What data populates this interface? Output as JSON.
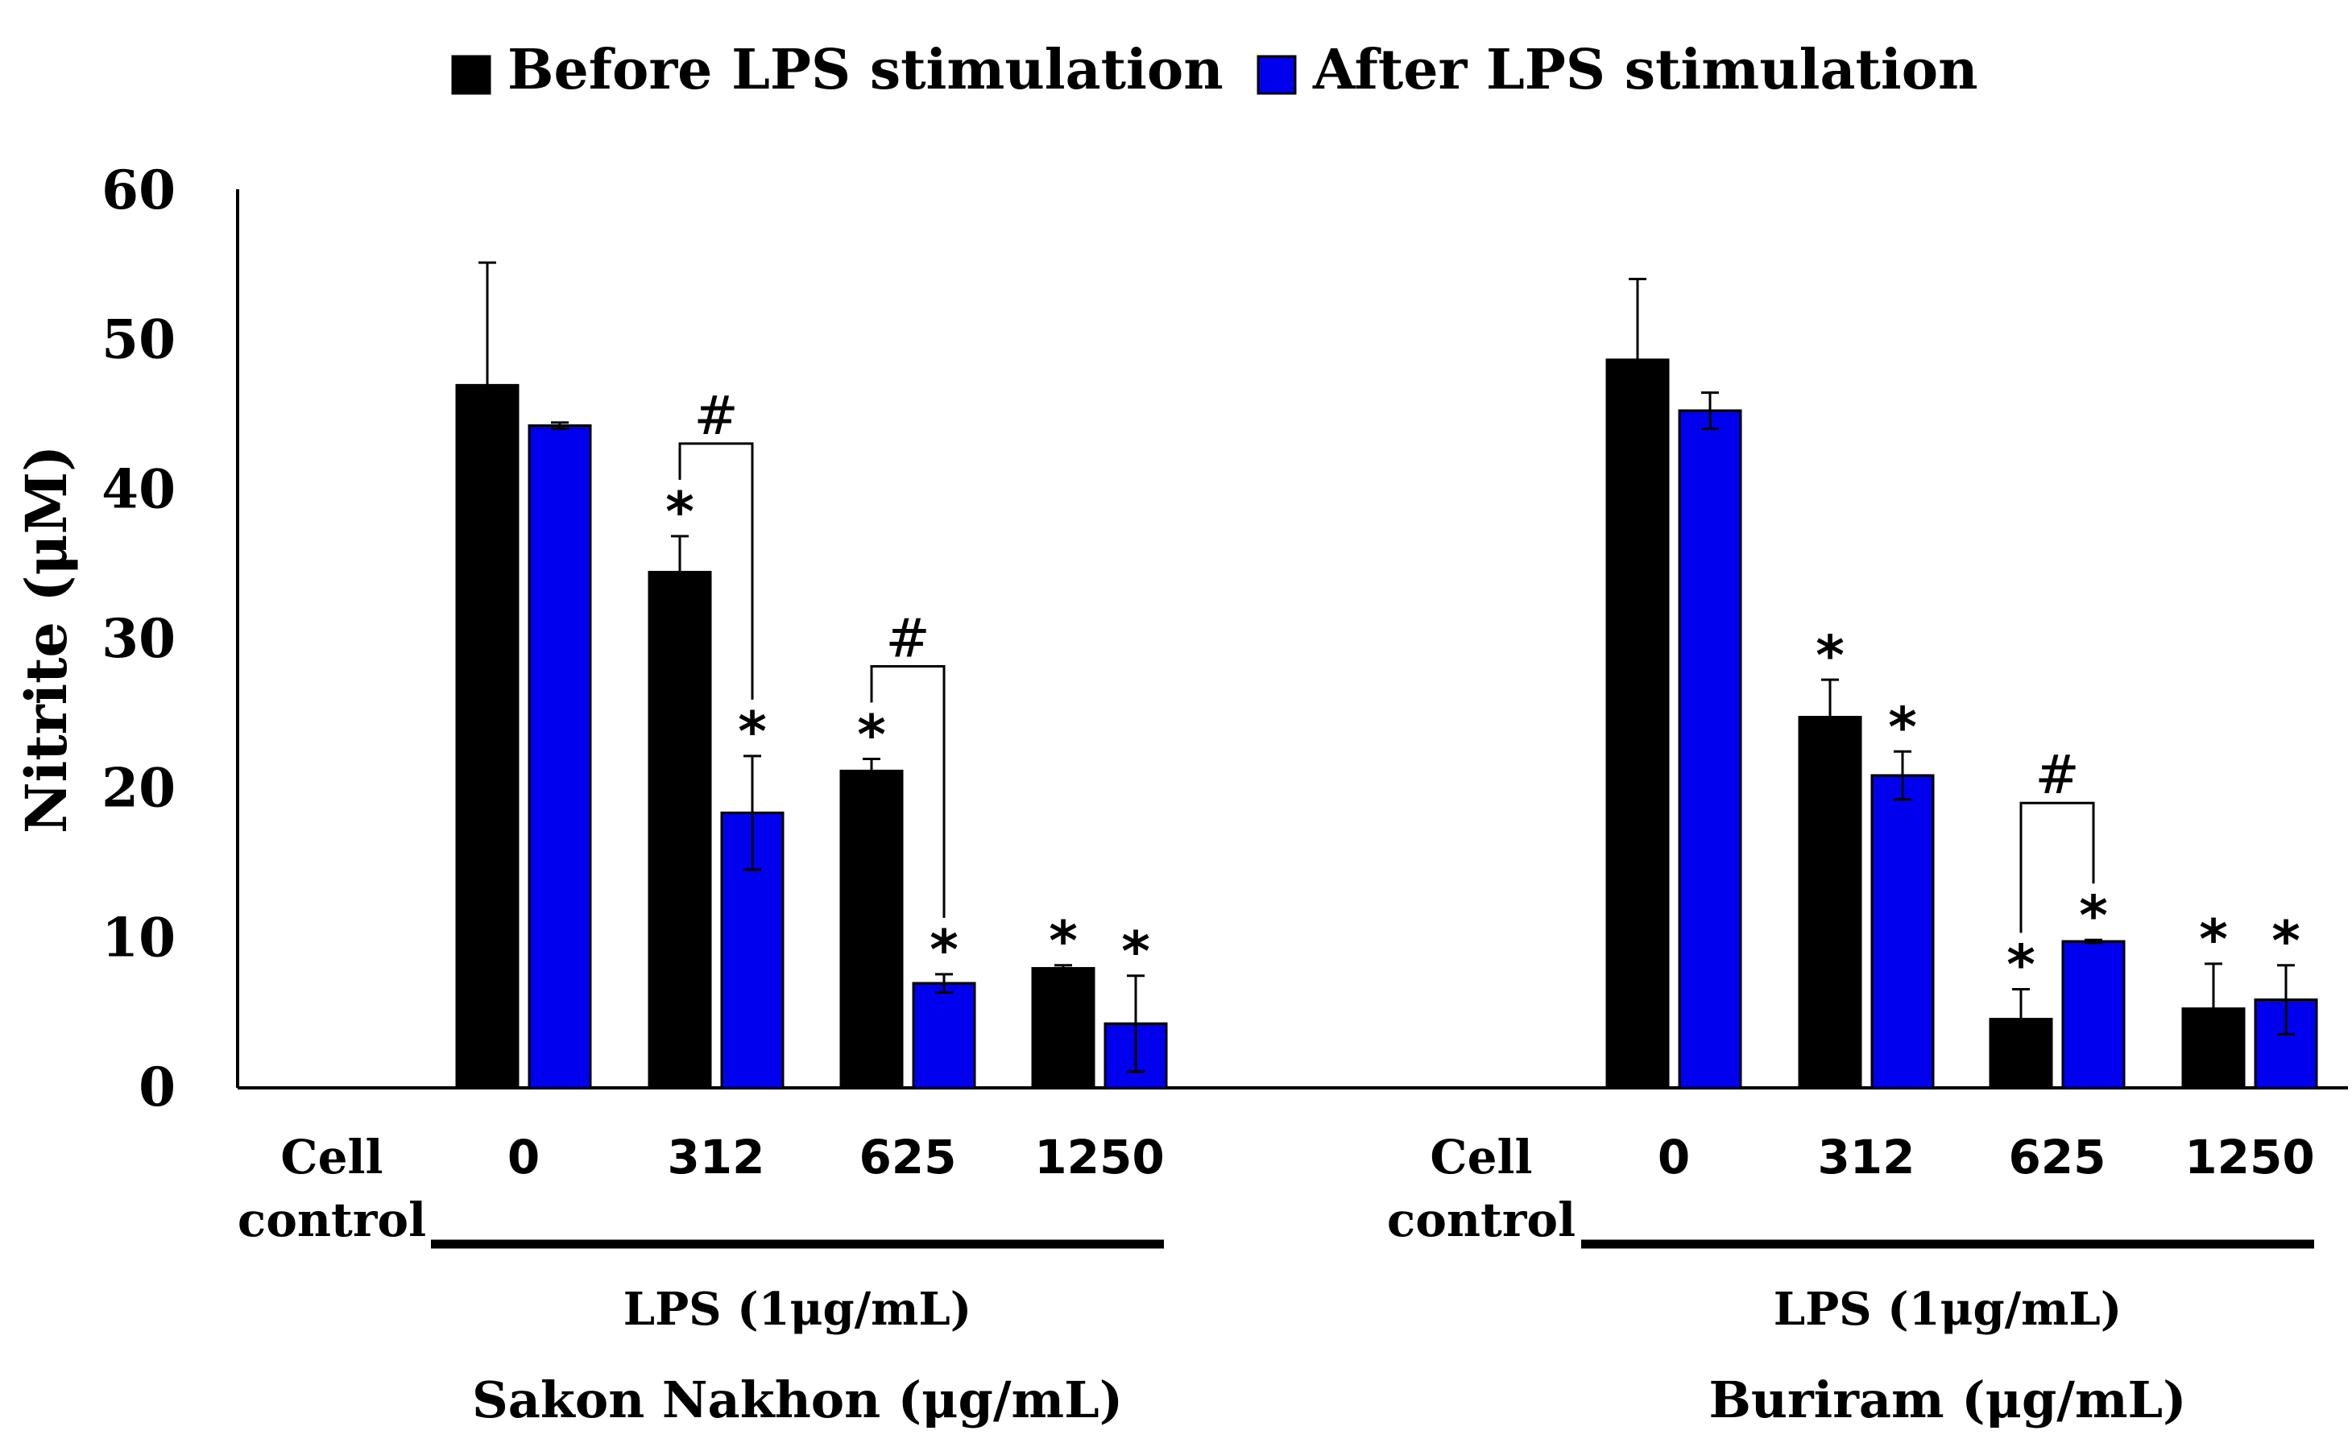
{
  "chart_data": {
    "type": "bar",
    "ylabel": "Nitrite (μM)",
    "ylim": [
      0,
      60
    ],
    "yticks": [
      "0",
      "10",
      "20",
      "30",
      "40",
      "50",
      "60"
    ],
    "colors": {
      "before": "#000000",
      "after": "#0000ee"
    },
    "legend": {
      "placement": "top-center",
      "items": [
        {
          "label": "Before LPS stimulation",
          "color": "#000000"
        },
        {
          "label": "After LPS stimulation",
          "color": "#0000ee"
        }
      ]
    },
    "groups": [
      {
        "name": "Sakon Nakhon",
        "group_label": "Sakon Nakhon (μg/mL)",
        "lps_label": "LPS (1μg/mL)",
        "categories": [
          "Cell\ncontrol",
          "0",
          "312",
          "625",
          "1250"
        ],
        "series": [
          {
            "name": "Before LPS stimulation",
            "values": [
              0,
              47,
              34.5,
              21.2,
              8
            ],
            "errors": [
              0,
              8.2,
              2.4,
              0.8,
              0.2
            ],
            "sig_star": [
              false,
              false,
              true,
              true,
              true
            ]
          },
          {
            "name": "After LPS stimulation",
            "values": [
              0,
              44.3,
              18.4,
              7,
              4.3
            ],
            "errors": [
              0,
              0.2,
              3.8,
              0.6,
              3.2
            ],
            "sig_star": [
              false,
              false,
              true,
              true,
              true
            ]
          }
        ],
        "hash_brackets": [
          {
            "category_index": 2,
            "label": "#"
          },
          {
            "category_index": 3,
            "label": "#"
          }
        ]
      },
      {
        "name": "Buriram",
        "group_label": "Buriram (μg/mL)",
        "lps_label": "LPS (1μg/mL)",
        "categories": [
          "Cell\ncontrol",
          "0",
          "312",
          "625",
          "1250"
        ],
        "series": [
          {
            "name": "Before LPS stimulation",
            "values": [
              0,
              48.7,
              24.8,
              4.6,
              5.3
            ],
            "errors": [
              0,
              5.4,
              2.5,
              2,
              3
            ],
            "sig_star": [
              false,
              false,
              true,
              true,
              true
            ]
          },
          {
            "name": "After LPS stimulation",
            "values": [
              0,
              45.3,
              20.9,
              9.8,
              5.9
            ],
            "errors": [
              0,
              1.2,
              1.6,
              0.1,
              2.3
            ],
            "sig_star": [
              false,
              false,
              true,
              true,
              true
            ]
          }
        ],
        "hash_brackets": [
          {
            "category_index": 3,
            "label": "#"
          }
        ]
      }
    ]
  }
}
